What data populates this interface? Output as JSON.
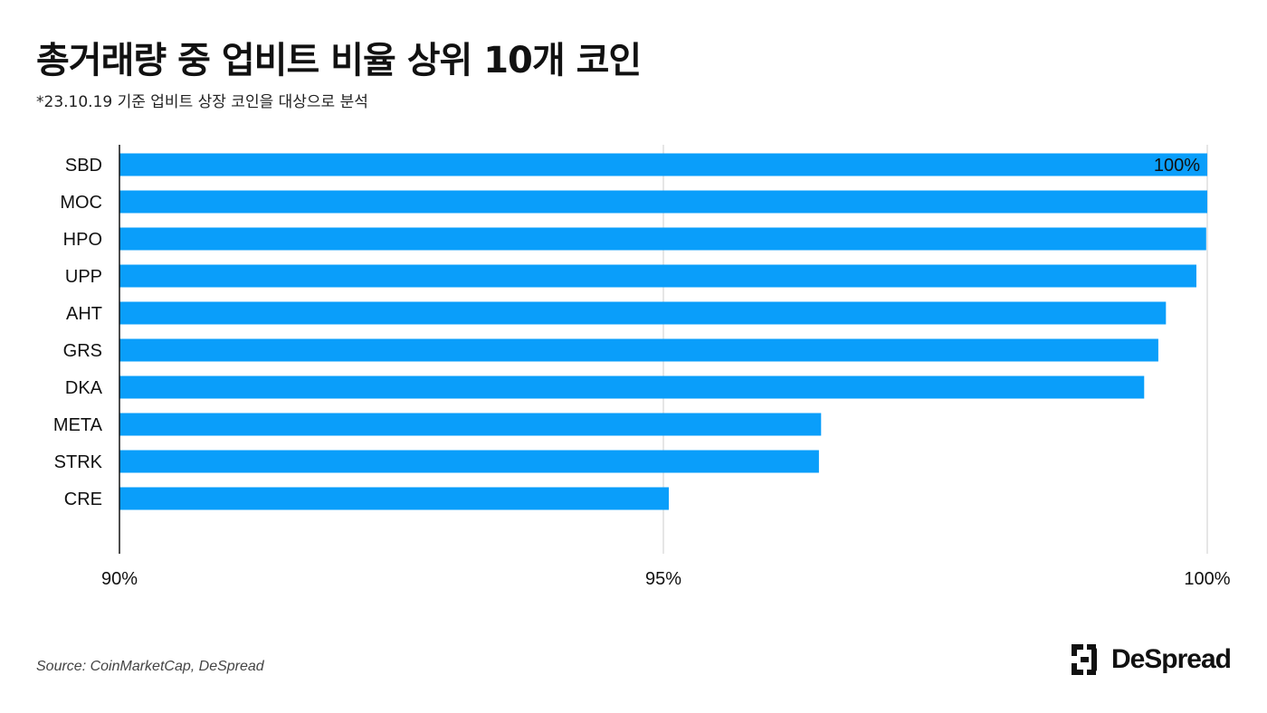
{
  "header": {
    "title": "총거래량 중 업비트 비율 상위 10개 코인",
    "subtitle": "*23.10.19 기준 업비트 상장 코인을 대상으로 분석"
  },
  "footer": {
    "source": "Source: CoinMarketCap, DeSpread",
    "brand": "DeSpread",
    "brand_icon": "despread-logo-icon"
  },
  "colors": {
    "bar": "#0A9EFA",
    "grid": "#cccccc",
    "axis": "#111111"
  },
  "chart_data": {
    "type": "bar",
    "orientation": "horizontal",
    "categories": [
      "SBD",
      "MOC",
      "HPO",
      "UPP",
      "AHT",
      "GRS",
      "DKA",
      "META",
      "STRK",
      "CRE"
    ],
    "values": [
      100.0,
      100.0,
      99.99,
      99.9,
      99.62,
      99.55,
      99.42,
      96.45,
      96.43,
      95.05
    ],
    "xlim": [
      90,
      100
    ],
    "ticks": [
      90,
      95,
      100
    ],
    "tick_labels": [
      "90%",
      "95%",
      "100%"
    ],
    "data_labels": [
      {
        "index": 0,
        "text": "100%"
      }
    ],
    "grid": true,
    "title": "총거래량 중 업비트 비율 상위 10개 코인",
    "xlabel": "",
    "ylabel": ""
  }
}
